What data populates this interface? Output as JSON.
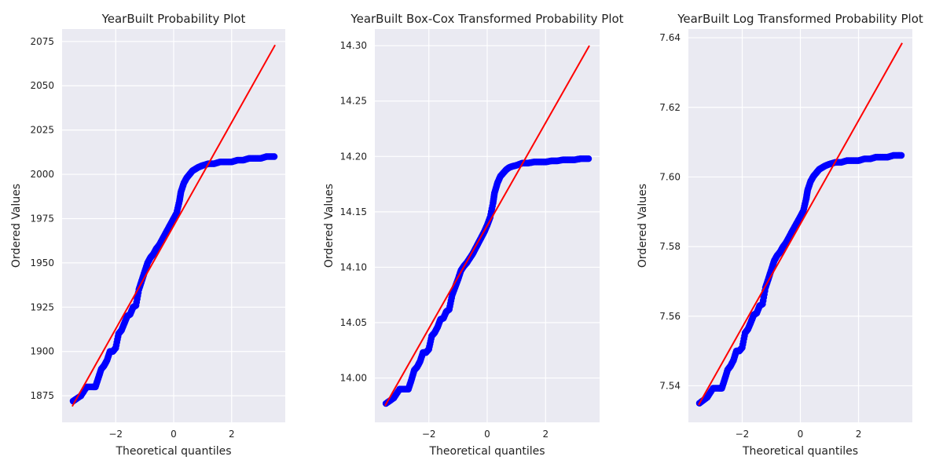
{
  "colors": {
    "axes_background": "#eaeaf2",
    "grid": "#ffffff",
    "points": "#0000ff",
    "fit_line": "#ff0000",
    "text": "#222222"
  },
  "chart_data": [
    {
      "type": "scatter",
      "title": "YearBuilt Probability Plot",
      "xlabel": "Theoretical quantiles",
      "ylabel": "Ordered Values",
      "xlim": [
        -3.85,
        3.85
      ],
      "ylim": [
        1860,
        2082
      ],
      "xticks": [
        -2,
        0,
        2
      ],
      "xtick_labels": [
        "−2",
        "0",
        "2"
      ],
      "yticks": [
        1875,
        1900,
        1925,
        1950,
        1975,
        2000,
        2025,
        2050,
        2075
      ],
      "ytick_labels": [
        "1875",
        "1900",
        "1925",
        "1950",
        "1975",
        "2000",
        "2025",
        "2050",
        "2075"
      ],
      "grid": true,
      "fit_line": {
        "x": [
          -3.5,
          3.5
        ],
        "y": [
          1869,
          2073
        ]
      },
      "points": {
        "x": [
          -3.47,
          -3.2,
          -3.0,
          -2.8,
          -2.7,
          -2.6,
          -2.5,
          -2.4,
          -2.3,
          -2.2,
          -2.1,
          -2.0,
          -1.9,
          -1.8,
          -1.7,
          -1.6,
          -1.5,
          -1.4,
          -1.3,
          -1.2,
          -1.1,
          -1.0,
          -0.9,
          -0.8,
          -0.7,
          -0.6,
          -0.5,
          -0.4,
          -0.3,
          -0.2,
          -0.1,
          0.0,
          0.1,
          0.2,
          0.25,
          0.35,
          0.45,
          0.55,
          0.65,
          0.75,
          0.85,
          1.0,
          1.2,
          1.4,
          1.6,
          1.8,
          2.0,
          2.2,
          2.4,
          2.6,
          2.8,
          3.0,
          3.2,
          3.47
        ],
        "y": [
          1872,
          1875,
          1880,
          1880,
          1880,
          1885,
          1890,
          1892,
          1895,
          1900,
          1900,
          1902,
          1910,
          1912,
          1916,
          1920,
          1921,
          1925,
          1926,
          1935,
          1940,
          1945,
          1950,
          1953,
          1955,
          1958,
          1960,
          1963,
          1966,
          1969,
          1972,
          1975,
          1978,
          1985,
          1990,
          1995,
          1998,
          2000,
          2002,
          2003,
          2004,
          2005,
          2006,
          2006,
          2007,
          2007,
          2007,
          2008,
          2008,
          2009,
          2009,
          2009,
          2010,
          2010
        ]
      }
    },
    {
      "type": "scatter",
      "title": "YearBuilt Box-Cox Transformed Probability Plot",
      "xlabel": "Theoretical quantiles",
      "ylabel": "Ordered Values",
      "xlim": [
        -3.85,
        3.85
      ],
      "ylim": [
        13.96,
        14.315
      ],
      "xticks": [
        -2,
        0,
        2
      ],
      "xtick_labels": [
        "−2",
        "0",
        "2"
      ],
      "yticks": [
        14.0,
        14.05,
        14.1,
        14.15,
        14.2,
        14.25,
        14.3
      ],
      "ytick_labels": [
        "14.00",
        "14.05",
        "14.10",
        "14.15",
        "14.20",
        "14.25",
        "14.30"
      ],
      "grid": true,
      "fit_line": {
        "x": [
          -3.5,
          3.5
        ],
        "y": [
          13.975,
          14.3
        ]
      },
      "points": {
        "x": [
          -3.47,
          -3.2,
          -3.0,
          -2.8,
          -2.7,
          -2.6,
          -2.5,
          -2.4,
          -2.3,
          -2.2,
          -2.1,
          -2.0,
          -1.9,
          -1.8,
          -1.7,
          -1.6,
          -1.5,
          -1.4,
          -1.3,
          -1.2,
          -1.1,
          -1.0,
          -0.9,
          -0.8,
          -0.7,
          -0.6,
          -0.5,
          -0.4,
          -0.3,
          -0.2,
          -0.1,
          0.0,
          0.1,
          0.2,
          0.25,
          0.35,
          0.45,
          0.55,
          0.65,
          0.75,
          0.85,
          1.0,
          1.2,
          1.4,
          1.6,
          1.8,
          2.0,
          2.2,
          2.4,
          2.6,
          2.8,
          3.0,
          3.2,
          3.47
        ],
        "y": [
          13.977,
          13.982,
          13.99,
          13.99,
          13.99,
          13.998,
          14.007,
          14.01,
          14.015,
          14.023,
          14.023,
          14.026,
          14.038,
          14.041,
          14.046,
          14.053,
          14.054,
          14.06,
          14.062,
          14.075,
          14.082,
          14.089,
          14.097,
          14.101,
          14.104,
          14.108,
          14.112,
          14.117,
          14.122,
          14.127,
          14.132,
          14.138,
          14.145,
          14.158,
          14.167,
          14.176,
          14.182,
          14.185,
          14.188,
          14.19,
          14.191,
          14.192,
          14.194,
          14.194,
          14.195,
          14.195,
          14.195,
          14.196,
          14.196,
          14.197,
          14.197,
          14.197,
          14.198,
          14.198
        ]
      }
    },
    {
      "type": "scatter",
      "title": "YearBuilt Log Transformed Probability Plot",
      "xlabel": "Theoretical quantiles",
      "ylabel": "Ordered Values",
      "xlim": [
        -3.85,
        3.85
      ],
      "ylim": [
        7.5295,
        7.6425
      ],
      "xticks": [
        -2,
        0,
        2
      ],
      "xtick_labels": [
        "−2",
        "0",
        "2"
      ],
      "yticks": [
        7.54,
        7.56,
        7.58,
        7.6,
        7.62,
        7.64
      ],
      "ytick_labels": [
        "7.54",
        "7.56",
        "7.58",
        "7.60",
        "7.62",
        "7.64"
      ],
      "grid": true,
      "fit_line": {
        "x": [
          -3.5,
          3.5
        ],
        "y": [
          7.5345,
          7.6385
        ]
      },
      "points": {
        "x": [
          -3.47,
          -3.2,
          -3.0,
          -2.8,
          -2.7,
          -2.6,
          -2.5,
          -2.4,
          -2.3,
          -2.2,
          -2.1,
          -2.0,
          -1.9,
          -1.8,
          -1.7,
          -1.6,
          -1.5,
          -1.4,
          -1.3,
          -1.2,
          -1.1,
          -1.0,
          -0.9,
          -0.8,
          -0.7,
          -0.6,
          -0.5,
          -0.4,
          -0.3,
          -0.2,
          -0.1,
          0.0,
          0.1,
          0.2,
          0.25,
          0.35,
          0.45,
          0.55,
          0.65,
          0.75,
          0.85,
          1.0,
          1.2,
          1.4,
          1.6,
          1.8,
          2.0,
          2.2,
          2.4,
          2.6,
          2.8,
          3.0,
          3.2,
          3.47
        ],
        "y": [
          7.535,
          7.5367,
          7.5393,
          7.5393,
          7.5393,
          7.5419,
          7.5446,
          7.5457,
          7.5473,
          7.55,
          7.55,
          7.551,
          7.5552,
          7.5563,
          7.5583,
          7.5604,
          7.5609,
          7.563,
          7.5635,
          7.5682,
          7.5707,
          7.5733,
          7.5759,
          7.5774,
          7.5784,
          7.5799,
          7.581,
          7.5825,
          7.5841,
          7.5856,
          7.5871,
          7.5886,
          7.5902,
          7.5937,
          7.5962,
          7.5987,
          7.6002,
          7.6012,
          7.6022,
          7.6027,
          7.6032,
          7.6037,
          7.6042,
          7.6042,
          7.6047,
          7.6047,
          7.6047,
          7.6052,
          7.6052,
          7.6057,
          7.6057,
          7.6057,
          7.6062,
          7.6062
        ]
      }
    }
  ]
}
